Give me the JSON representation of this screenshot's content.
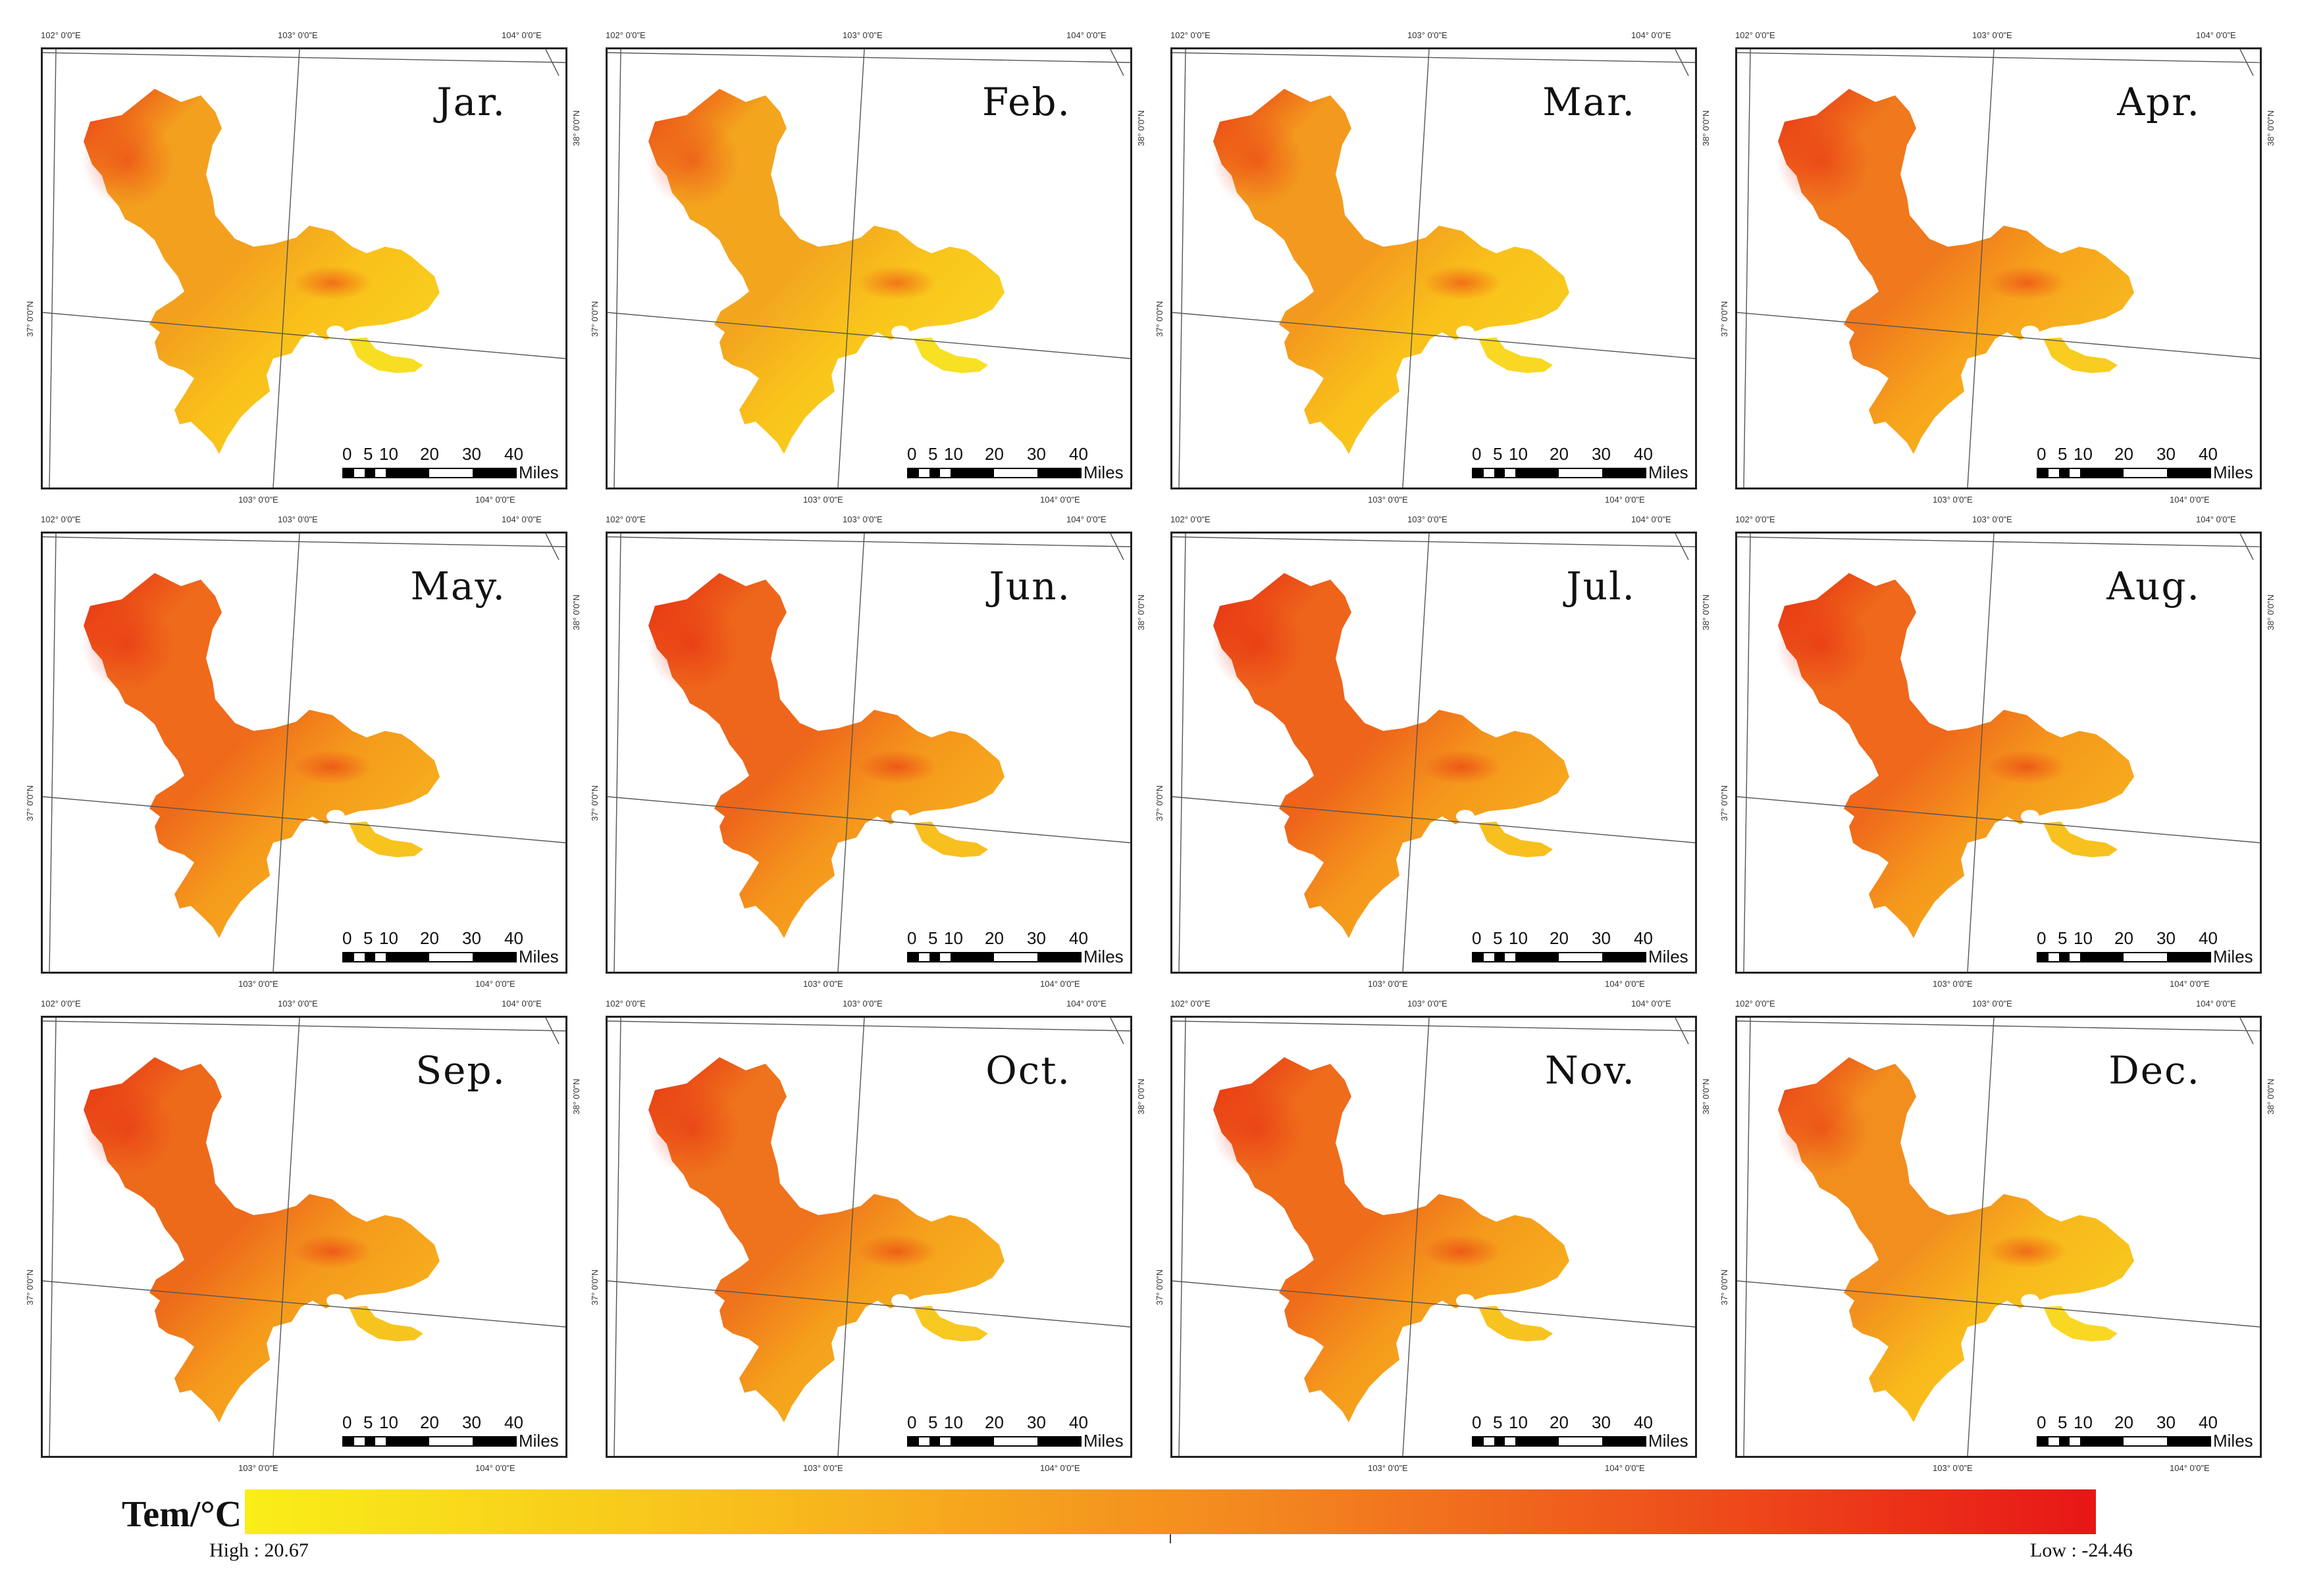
{
  "months": [
    "Jar.",
    "Feb.",
    "Mar.",
    "Apr.",
    "May.",
    "Jun.",
    "Jul.",
    "Aug.",
    "Sep.",
    "Oct.",
    "Nov.",
    "Dec."
  ],
  "scale_bar": {
    "labels": [
      "0",
      "5",
      "10",
      "20",
      "30",
      "40"
    ],
    "unit": "Miles"
  },
  "graticule": {
    "lon_labels": [
      "102° 0'0\"E",
      "103° 0'0\"E",
      "104° 0'0\"E"
    ],
    "lat_labels": [
      "37° 0'0\"N",
      "38° 0'0\"N"
    ]
  },
  "legend": {
    "title": "Tem/°C",
    "high": "High : 20.67",
    "low": "Low : -24.46",
    "ramp_colors": [
      "#f9ee18",
      "#f8c21c",
      "#f3871f",
      "#ee4a1b",
      "#e81616"
    ]
  },
  "panel_colors": {
    "Jar.": [
      "#f9c01a",
      "#f3a01e",
      "#ea3015",
      "#f8de22"
    ],
    "Feb.": [
      "#f9c41b",
      "#f3a51e",
      "#eb3a16",
      "#f8e023"
    ],
    "Mar.": [
      "#f9c01a",
      "#f39a1e",
      "#ea3014",
      "#f8d822"
    ],
    "Apr.": [
      "#f7a41c",
      "#f0781d",
      "#e82c14",
      "#f8cc20"
    ],
    "May.": [
      "#f59a1c",
      "#ef6a1b",
      "#e72a13",
      "#f7c41f"
    ],
    "Jun.": [
      "#f5961c",
      "#ee661b",
      "#e62812",
      "#f7c01f"
    ],
    "Jul.": [
      "#f5961c",
      "#ee641b",
      "#e62812",
      "#f7c01f"
    ],
    "Aug.": [
      "#f5981c",
      "#ef681b",
      "#e62812",
      "#f7c21f"
    ],
    "Sep.": [
      "#f59a1c",
      "#ee6a1b",
      "#e72a13",
      "#f7c41f"
    ],
    "Oct.": [
      "#f5a01c",
      "#ef721c",
      "#e72c13",
      "#f7c820"
    ],
    "Nov.": [
      "#f59a1c",
      "#ef6c1b",
      "#e72a13",
      "#f7c41f"
    ],
    "Dec.": [
      "#f8b81b",
      "#f28e1e",
      "#e93014",
      "#f8d822"
    ]
  }
}
